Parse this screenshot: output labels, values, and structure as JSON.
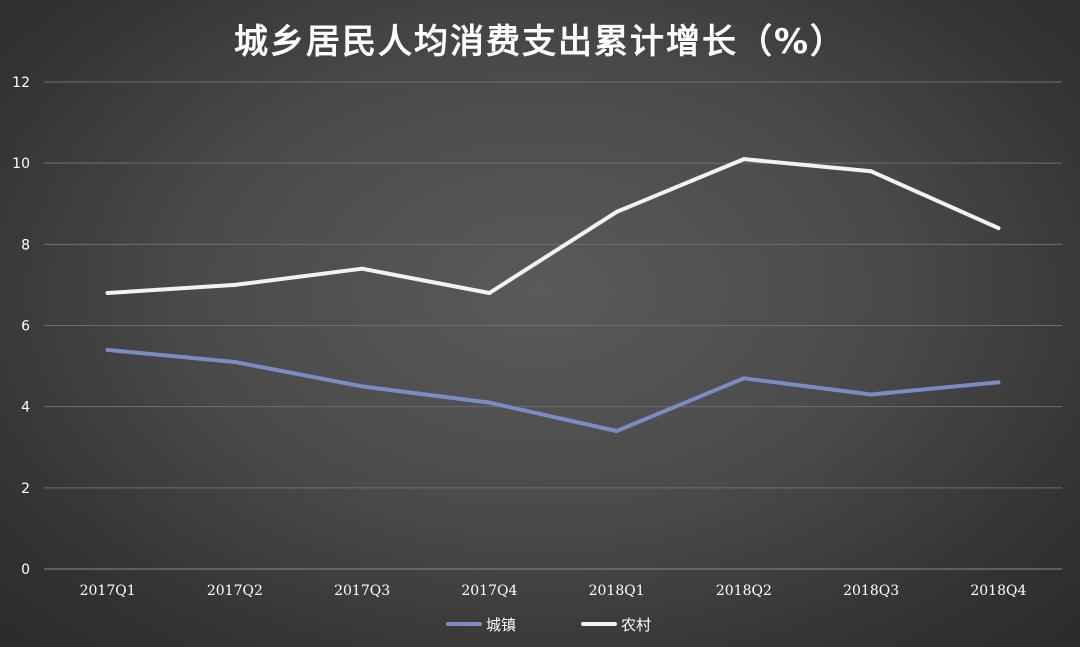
{
  "chart_data": {
    "type": "line",
    "title": "城乡居民人均消费支出累计增长（%）",
    "categories": [
      "2017Q1",
      "2017Q2",
      "2017Q3",
      "2017Q4",
      "2018Q1",
      "2018Q2",
      "2018Q3",
      "2018Q4"
    ],
    "series": [
      {
        "name": "城镇",
        "values": [
          5.4,
          5.1,
          4.5,
          4.1,
          3.4,
          4.7,
          4.3,
          4.6
        ],
        "color": "#7b8cc4"
      },
      {
        "name": "农村",
        "values": [
          6.8,
          7.0,
          7.4,
          6.8,
          8.8,
          10.1,
          9.8,
          8.4
        ],
        "color": "#f2f2f2"
      }
    ],
    "ylim": [
      0,
      12
    ],
    "yticks": [
      0,
      2,
      4,
      6,
      8,
      10,
      12
    ],
    "grid": true,
    "legend_position": "bottom-center",
    "xlabel": "",
    "ylabel": ""
  }
}
